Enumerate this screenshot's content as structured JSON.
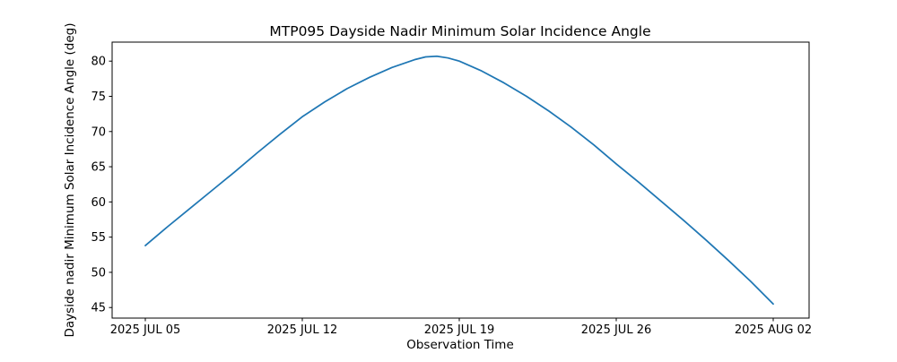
{
  "chart_data": {
    "type": "line",
    "title": "MTP095 Dayside Nadir Minimum Solar Incidence Angle",
    "xlabel": "Observation Time",
    "ylabel": "Dayside nadir Minimum Solar Incidence Angle (deg)",
    "x_tick_labels": [
      "2025 JUL 05",
      "2025 JUL 12",
      "2025 JUL 19",
      "2025 JUL 26",
      "2025 AUG 02"
    ],
    "x_tick_day_offsets": [
      0,
      7,
      14,
      21,
      28
    ],
    "y_ticks": [
      45,
      50,
      55,
      60,
      65,
      70,
      75,
      80
    ],
    "xlim_day_offsets": [
      -1.48,
      29.6
    ],
    "ylim": [
      43.5,
      82.7
    ],
    "grid": false,
    "legend": null,
    "line_color": "#1f77b4",
    "axis_color": "#000000",
    "background_color": "#ffffff",
    "series": [
      {
        "name": "dayside-nadir-min-solar-incidence-angle",
        "x_day_offsets_from_2025_jul_05": [
          0,
          1,
          2,
          3,
          4,
          5,
          6,
          7,
          8,
          9,
          10,
          11,
          12,
          12.5,
          13,
          13.5,
          14,
          15,
          16,
          17,
          18,
          19,
          20,
          21,
          22,
          23,
          24,
          25,
          26,
          27,
          28
        ],
        "values": [
          53.8,
          56.5,
          59.1,
          61.7,
          64.3,
          67.0,
          69.6,
          72.1,
          74.2,
          76.1,
          77.7,
          79.1,
          80.2,
          80.6,
          80.7,
          80.45,
          80.0,
          78.6,
          76.9,
          75.0,
          72.9,
          70.6,
          68.1,
          65.4,
          62.8,
          60.1,
          57.4,
          54.6,
          51.7,
          48.7,
          45.5
        ]
      }
    ]
  }
}
